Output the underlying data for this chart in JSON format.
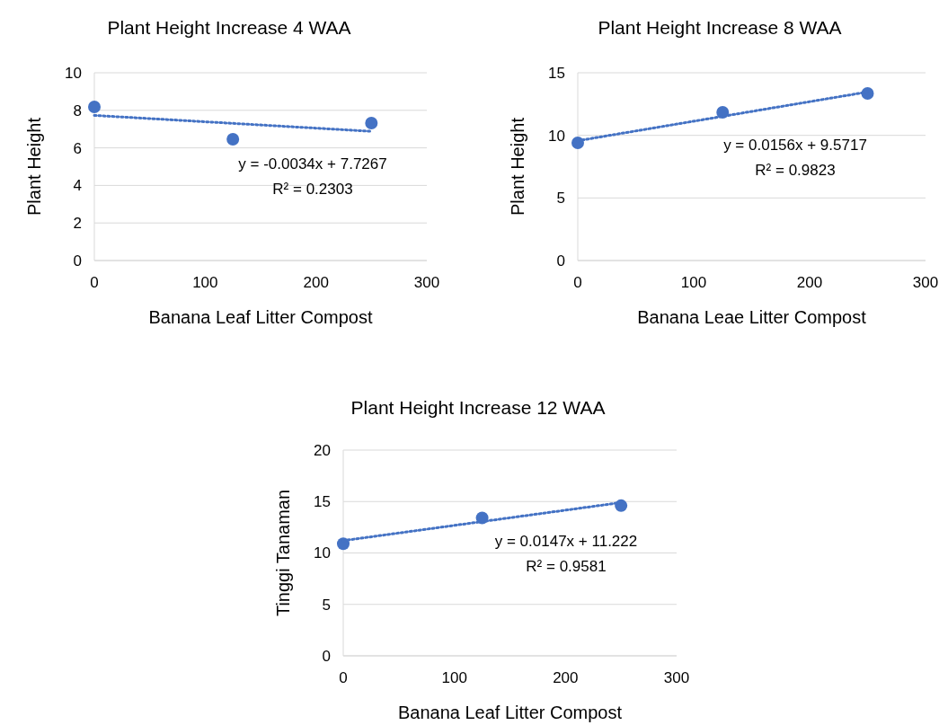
{
  "chart_data": [
    {
      "type": "scatter",
      "title": "Plant Height Increase 4 WAA",
      "xlabel": "Banana Leaf Litter Compost",
      "ylabel": "Plant Height",
      "xlim": [
        0,
        300
      ],
      "xticks": [
        0,
        100,
        200,
        300
      ],
      "ylim": [
        0,
        10
      ],
      "yticks": [
        0,
        2,
        4,
        6,
        8,
        10
      ],
      "grid": "y",
      "marker": "circle",
      "series": [
        {
          "color": "#4472c4",
          "x": [
            0,
            125,
            250
          ],
          "values": [
            8.18,
            6.46,
            7.32
          ]
        },
        {
          "type": "line",
          "color": "#4472c4",
          "line_style": "dotted",
          "marker": "none",
          "x": [
            0,
            250
          ],
          "values": [
            7.73,
            6.88
          ]
        }
      ],
      "annotations": [
        "y = -0.0034x + 7.7267",
        "R² = 0.2303"
      ]
    },
    {
      "type": "scatter",
      "title": "Plant Height Increase  8 WAA",
      "xlabel": "Banana Leae Litter Compost",
      "ylabel": "Plant Height",
      "xlim": [
        0,
        300
      ],
      "xticks": [
        0,
        100,
        200,
        300
      ],
      "ylim": [
        0,
        15
      ],
      "yticks": [
        0,
        5,
        10,
        15
      ],
      "grid": "y",
      "marker": "circle",
      "series": [
        {
          "color": "#4472c4",
          "x": [
            0,
            125,
            250
          ],
          "values": [
            9.4,
            11.84,
            13.35
          ]
        },
        {
          "type": "line",
          "color": "#4472c4",
          "line_style": "dotted",
          "marker": "none",
          "x": [
            0,
            250
          ],
          "values": [
            9.57,
            13.47
          ]
        }
      ],
      "annotations": [
        "y = 0.0156x + 9.5717",
        "R² = 0.9823"
      ]
    },
    {
      "type": "scatter",
      "title": "Plant Height Increase 12 WAA",
      "xlabel": "Banana Leaf Litter Compost",
      "ylabel": "Tinggi Tanaman",
      "xlim": [
        0,
        300
      ],
      "xticks": [
        0,
        100,
        200,
        300
      ],
      "ylim": [
        0,
        20
      ],
      "yticks": [
        0,
        5,
        10,
        15,
        20
      ],
      "grid": "y",
      "marker": "circle",
      "series": [
        {
          "color": "#4472c4",
          "x": [
            0,
            125,
            250
          ],
          "values": [
            10.9,
            13.4,
            14.6
          ]
        },
        {
          "type": "line",
          "color": "#4472c4",
          "line_style": "dotted",
          "marker": "none",
          "x": [
            0,
            250
          ],
          "values": [
            11.2,
            14.9
          ]
        }
      ],
      "annotations": [
        "y = 0.0147x + 11.222",
        "R² = 0.9581"
      ]
    }
  ]
}
